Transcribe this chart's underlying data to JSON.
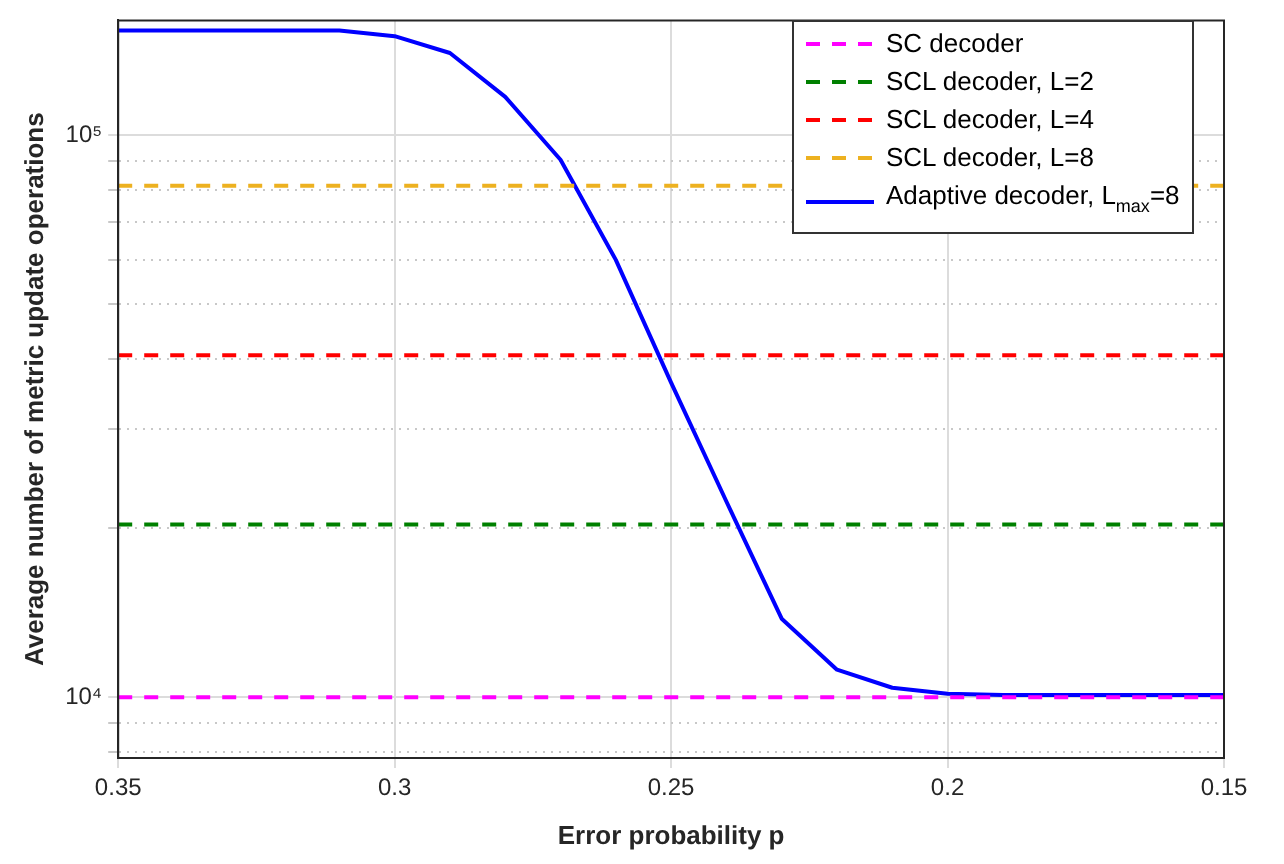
{
  "chart_data": {
    "type": "line",
    "xlabel": "Error probability p",
    "ylabel": "Average number of metric update operations",
    "log": "y",
    "grid": true,
    "legend": "top right",
    "marker": "none",
    "xlim": [
      0.35,
      0.15
    ],
    "xticks": [
      0.35,
      0.3,
      0.25,
      0.2,
      0.15
    ],
    "ylim": [
      7800,
      160000
    ],
    "yticks": [
      {
        "value": 8000,
        "label": null
      },
      {
        "value": 9000,
        "label": null
      },
      {
        "value": 10000,
        "label": "10⁴"
      },
      {
        "value": 20000,
        "label": null
      },
      {
        "value": 30000,
        "label": null
      },
      {
        "value": 40000,
        "label": null
      },
      {
        "value": 50000,
        "label": null
      },
      {
        "value": 60000,
        "label": null
      },
      {
        "value": 70000,
        "label": null
      },
      {
        "value": 80000,
        "label": null
      },
      {
        "value": 90000,
        "label": null
      },
      {
        "value": 100000,
        "label": "10⁵"
      }
    ],
    "series": [
      {
        "name": "SC decoder",
        "color": "#ff00ff",
        "line_style": "dashed",
        "x": [
          0.35,
          0.15
        ],
        "values": [
          10000,
          10000
        ]
      },
      {
        "name": "SCL decoder, L=2",
        "color": "#008000",
        "line_style": "dashed",
        "x": [
          0.35,
          0.15
        ],
        "values": [
          20300,
          20300
        ]
      },
      {
        "name": "SCL decoder, L=4",
        "color": "#ff0000",
        "line_style": "dashed",
        "x": [
          0.35,
          0.15
        ],
        "values": [
          40600,
          40600
        ]
      },
      {
        "name": "SCL decoder, L=8",
        "color": "#edb120",
        "line_style": "dashed",
        "x": [
          0.35,
          0.15
        ],
        "values": [
          81300,
          81300
        ]
      },
      {
        "name": "Adaptive decoder, L$_{max}$=8",
        "color": "#0000ff",
        "line_style": "solid",
        "x": [
          0.35,
          0.34,
          0.33,
          0.32,
          0.31,
          0.3,
          0.29,
          0.28,
          0.27,
          0.26,
          0.25,
          0.24,
          0.23,
          0.22,
          0.21,
          0.2,
          0.19,
          0.18,
          0.17,
          0.16,
          0.15
        ],
        "values": [
          153500,
          153500,
          153500,
          153500,
          153500,
          150000,
          140000,
          117000,
          90400,
          60000,
          36300,
          22300,
          13800,
          11200,
          10400,
          10150,
          10100,
          10100,
          10100,
          10100,
          10100
        ]
      }
    ]
  }
}
